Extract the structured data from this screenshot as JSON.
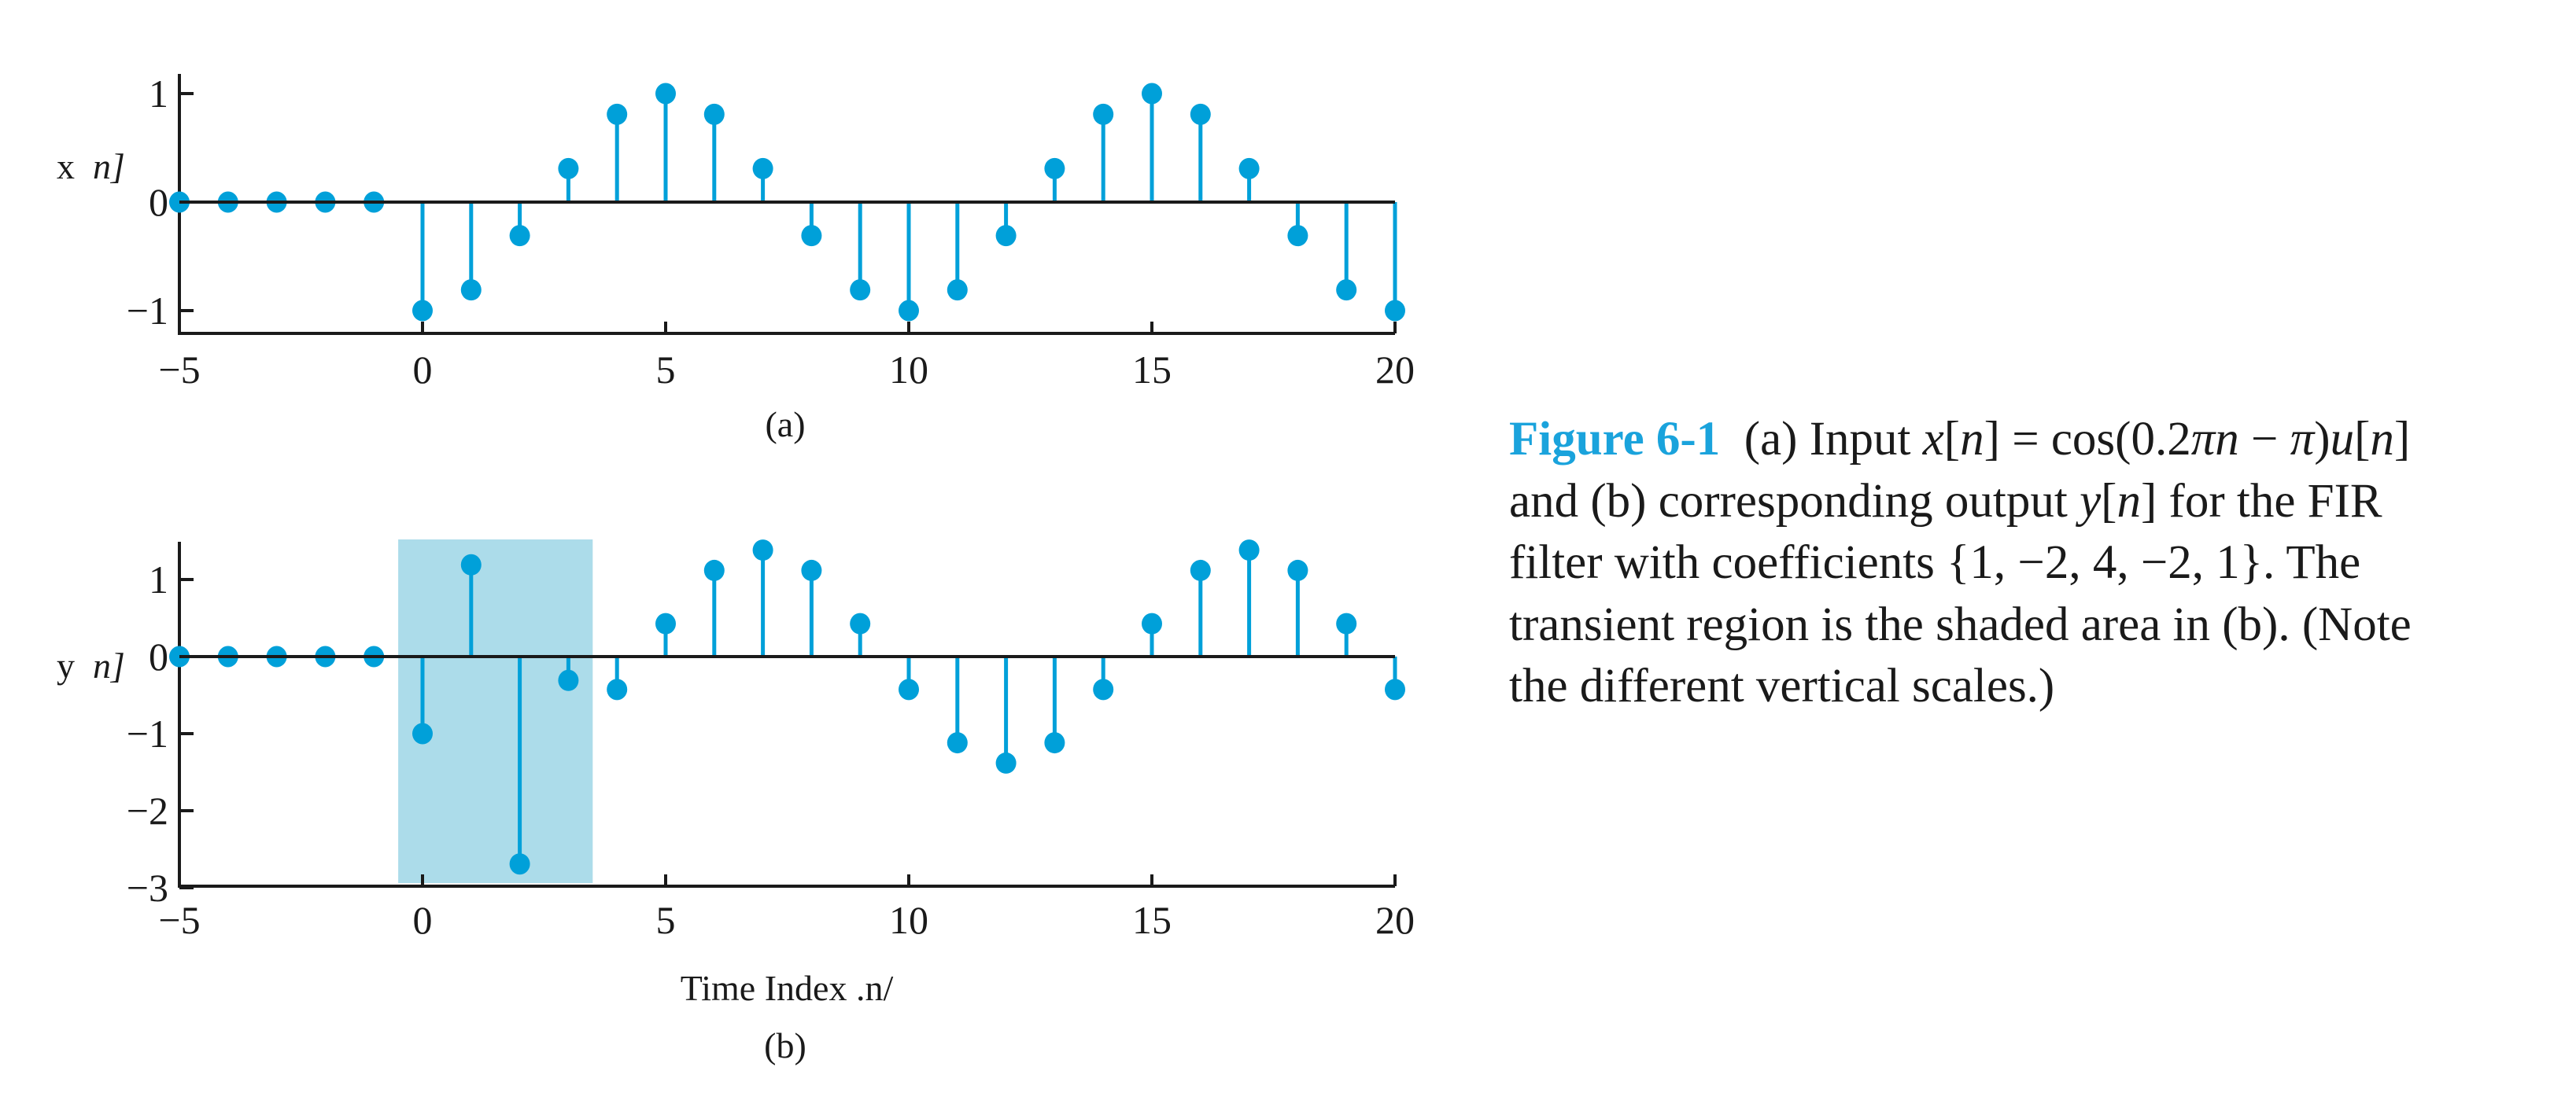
{
  "colors": {
    "stem": "#00a0d9",
    "shade": "#acdcea",
    "axis": "#1a1a1a",
    "caption_label": "#1aa3dc"
  },
  "chart_data": [
    {
      "type": "stem",
      "panel_label": "(a)",
      "ylabel": {
        "prefix": "x",
        "var": "n]"
      },
      "xlabel": "",
      "xlim": [
        -5,
        20
      ],
      "ylim": [
        -1.2,
        1.2
      ],
      "xticks": [
        -5,
        0,
        5,
        10,
        15,
        20
      ],
      "yticks": [
        -1,
        0,
        1
      ],
      "ytick_labels": [
        "−1",
        "0",
        "1"
      ],
      "xtick_labels": [
        "−5",
        "0",
        "5",
        "10",
        "15",
        "20"
      ],
      "grid": false,
      "n": [
        -5,
        -4,
        -3,
        -2,
        -1,
        0,
        1,
        2,
        3,
        4,
        5,
        6,
        7,
        8,
        9,
        10,
        11,
        12,
        13,
        14,
        15,
        16,
        17,
        18,
        19,
        20
      ],
      "values": [
        0,
        0,
        0,
        0,
        0,
        -1,
        -0.809,
        -0.309,
        0.309,
        0.809,
        1,
        0.809,
        0.309,
        -0.309,
        -0.809,
        -1,
        -0.809,
        -0.309,
        0.309,
        0.809,
        1,
        0.809,
        0.309,
        -0.309,
        -0.809,
        -1
      ]
    },
    {
      "type": "stem",
      "panel_label": "(b)",
      "ylabel": {
        "prefix": "y",
        "var": "n]"
      },
      "xlabel": "Time Index .n/",
      "xlim": [
        -5,
        20
      ],
      "ylim": [
        -3,
        1.5
      ],
      "xticks": [
        -5,
        0,
        5,
        10,
        15,
        20
      ],
      "yticks": [
        -3,
        -2,
        -1,
        0,
        1
      ],
      "ytick_labels": [
        "−3",
        "−2",
        "−1",
        "0",
        "1"
      ],
      "xtick_labels": [
        "−5",
        "0",
        "5",
        "10",
        "15",
        "20"
      ],
      "grid": false,
      "shaded_region": {
        "x": [
          -0.5,
          3.5
        ],
        "y": [
          -2.94,
          1.52
        ]
      },
      "n": [
        -5,
        -4,
        -3,
        -2,
        -1,
        0,
        1,
        2,
        3,
        4,
        5,
        6,
        7,
        8,
        9,
        10,
        11,
        12,
        13,
        14,
        15,
        16,
        17,
        18,
        19,
        20
      ],
      "values": [
        0,
        0,
        0,
        0,
        0,
        -1,
        1.191,
        -2.691,
        -0.309,
        -0.427,
        0.427,
        1.118,
        1.382,
        1.118,
        0.427,
        -0.427,
        -1.118,
        -1.382,
        -1.118,
        -0.427,
        0.427,
        1.118,
        1.382,
        1.118,
        0.427,
        -0.427
      ]
    }
  ],
  "caption": {
    "lines": [
      [
        {
          "t": "Figure 6-1",
          "s": "label"
        },
        {
          "t": "  (a) Input "
        },
        {
          "t": "x",
          "s": "it"
        },
        {
          "t": "["
        },
        {
          "t": "n",
          "s": "it"
        },
        {
          "t": "] = cos(0.2"
        },
        {
          "t": "πn",
          "s": "it"
        },
        {
          "t": " − "
        },
        {
          "t": "π",
          "s": "it"
        },
        {
          "t": ")"
        },
        {
          "t": "u",
          "s": "it"
        },
        {
          "t": "["
        },
        {
          "t": "n",
          "s": "it"
        },
        {
          "t": "]"
        }
      ],
      [
        {
          "t": "and (b) corresponding output "
        },
        {
          "t": "y",
          "s": "it"
        },
        {
          "t": "["
        },
        {
          "t": "n",
          "s": "it"
        },
        {
          "t": "] for the FIR"
        }
      ],
      [
        {
          "t": "filter with coefficients {1, −2, 4, −2, 1}. The"
        }
      ],
      [
        {
          "t": "transient region is the shaded area in (b). (Note"
        }
      ],
      [
        {
          "t": "the different vertical scales.)"
        }
      ]
    ]
  }
}
